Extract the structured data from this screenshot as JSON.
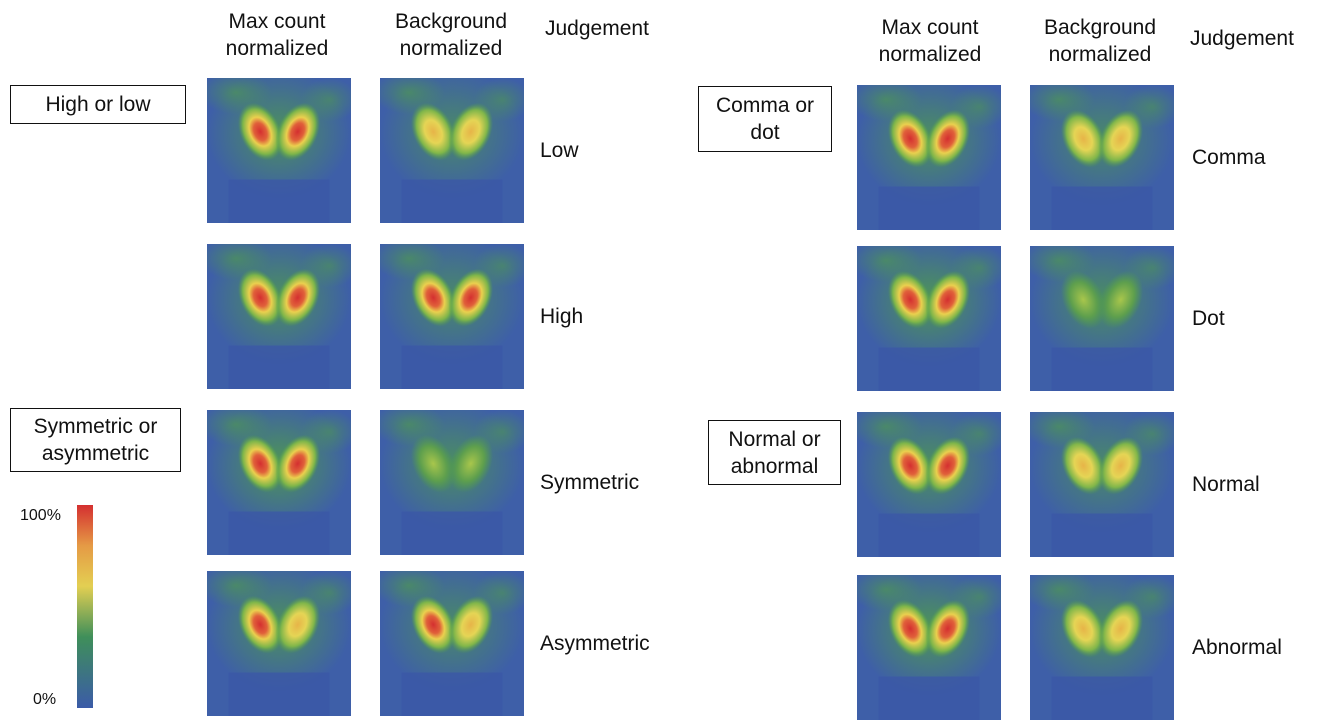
{
  "left": {
    "headers": [
      [
        "Max count",
        "normalized"
      ],
      [
        "Background",
        "normalized"
      ]
    ],
    "judgement_header": "Judgement",
    "groups": [
      {
        "label": [
          "High or low"
        ],
        "rows": [
          "Low",
          "High"
        ]
      },
      {
        "label": [
          "Symmetric or",
          "asymmetric"
        ],
        "rows": [
          "Symmetric",
          "Asymmetric"
        ]
      }
    ]
  },
  "right": {
    "headers": [
      [
        "Max count",
        "normalized"
      ],
      [
        "Background",
        "normalized"
      ]
    ],
    "judgement_header": "Judgement",
    "groups": [
      {
        "label": [
          "Comma or",
          "dot"
        ],
        "rows": [
          "Comma",
          "Dot"
        ]
      },
      {
        "label": [
          "Normal or",
          "abnormal"
        ],
        "rows": [
          "Normal",
          "Abnormal"
        ]
      }
    ]
  },
  "colorbar": {
    "max_label": "100%",
    "min_label": "0%"
  }
}
